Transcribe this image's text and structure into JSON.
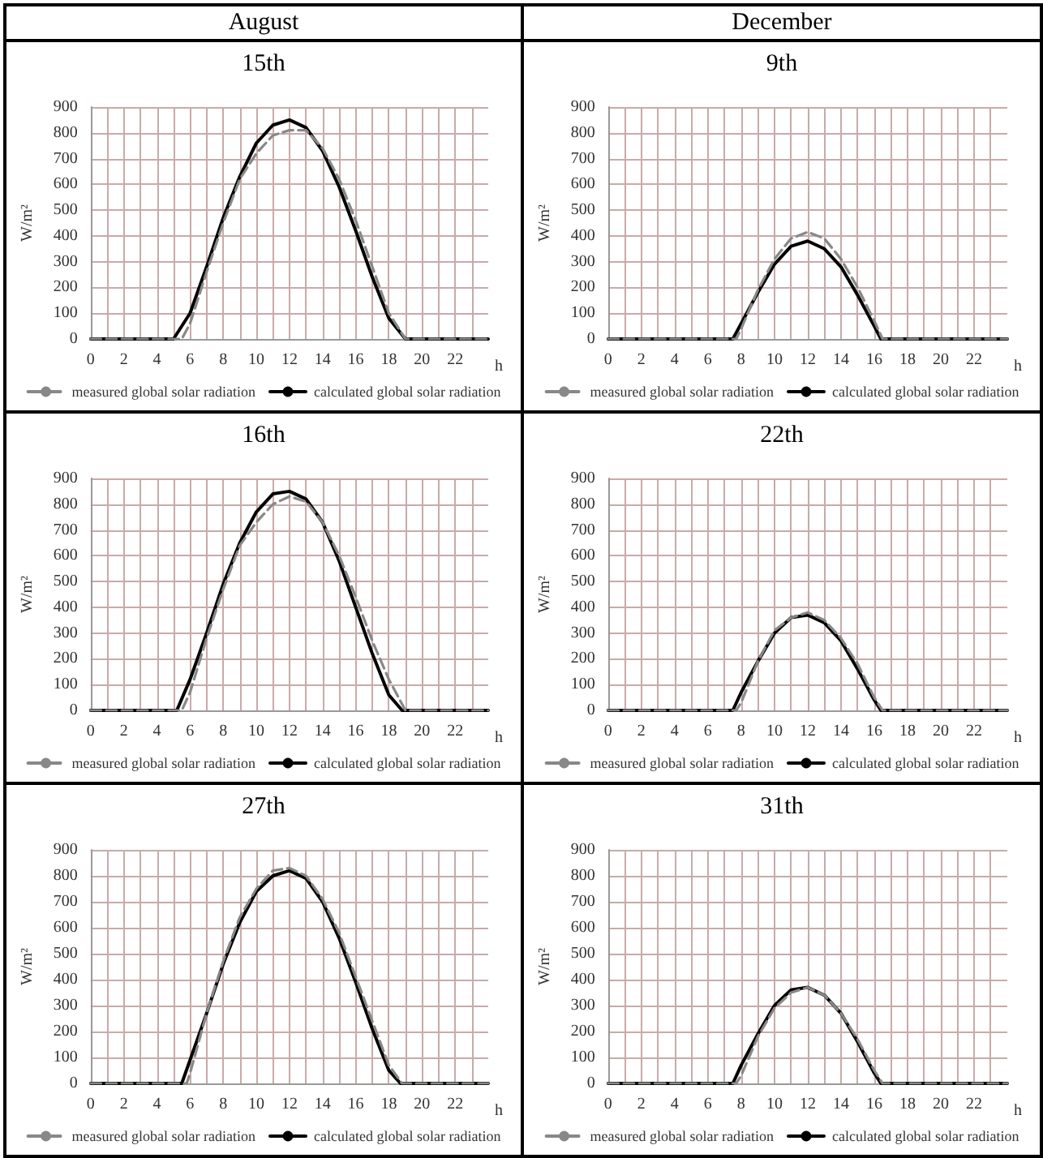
{
  "chart_data": [
    {
      "type": "line",
      "title": "15th",
      "annotations": [
        "August"
      ],
      "xlabel": "h",
      "ylabel": "W/m²",
      "xlim": [
        0,
        24
      ],
      "ylim": [
        0,
        900
      ],
      "xticks": [
        0,
        {
          "value": 1,
          "label": null
        },
        2,
        {
          "value": 3,
          "label": null
        },
        4,
        {
          "value": 5,
          "label": null
        },
        6,
        {
          "value": 7,
          "label": null
        },
        8,
        {
          "value": 9,
          "label": null
        },
        10,
        {
          "value": 11,
          "label": null
        },
        12,
        {
          "value": 13,
          "label": null
        },
        14,
        {
          "value": 15,
          "label": null
        },
        16,
        {
          "value": 17,
          "label": null
        },
        18,
        {
          "value": 19,
          "label": null
        },
        20,
        {
          "value": 21,
          "label": null
        },
        22,
        {
          "value": 23,
          "label": null
        }
      ],
      "yticks": [
        0,
        100,
        200,
        300,
        400,
        500,
        600,
        700,
        800,
        900
      ],
      "grid": true,
      "legend": "bottom",
      "marker": "none",
      "series": [
        {
          "name": "measured global solar radiation",
          "color": "#888888",
          "line_style": "dashed",
          "x": [
            0,
            5.5,
            6,
            7,
            8,
            9,
            10,
            11,
            12,
            13,
            14,
            15,
            16,
            17,
            18,
            19,
            24
          ],
          "values": [
            0,
            0,
            60,
            260,
            450,
            620,
            720,
            790,
            810,
            810,
            740,
            620,
            460,
            280,
            100,
            0,
            0
          ]
        },
        {
          "name": "calculated global solar radiation",
          "color": "#000000",
          "line_style": "solid",
          "x": [
            0,
            5,
            6,
            7,
            8,
            9,
            10,
            11,
            12,
            13,
            14,
            15,
            16,
            17,
            18,
            19,
            24
          ],
          "values": [
            0,
            0,
            100,
            280,
            470,
            630,
            760,
            830,
            850,
            820,
            730,
            590,
            420,
            240,
            80,
            0,
            0
          ]
        }
      ]
    },
    {
      "type": "line",
      "title": "9th",
      "annotations": [
        "December"
      ],
      "xlabel": "h",
      "ylabel": "W/m²",
      "xlim": [
        0,
        24
      ],
      "ylim": [
        0,
        900
      ],
      "xticks": [
        0,
        {
          "value": 1,
          "label": null
        },
        2,
        {
          "value": 3,
          "label": null
        },
        4,
        {
          "value": 5,
          "label": null
        },
        6,
        {
          "value": 7,
          "label": null
        },
        8,
        {
          "value": 9,
          "label": null
        },
        10,
        {
          "value": 11,
          "label": null
        },
        12,
        {
          "value": 13,
          "label": null
        },
        14,
        {
          "value": 15,
          "label": null
        },
        16,
        {
          "value": 17,
          "label": null
        },
        18,
        {
          "value": 19,
          "label": null
        },
        20,
        {
          "value": 21,
          "label": null
        },
        22,
        {
          "value": 23,
          "label": null
        }
      ],
      "yticks": [
        0,
        100,
        200,
        300,
        400,
        500,
        600,
        700,
        800,
        900
      ],
      "grid": true,
      "legend": "bottom",
      "marker": "none",
      "series": [
        {
          "name": "measured global solar radiation",
          "color": "#888888",
          "line_style": "dashed",
          "x": [
            0,
            7.7,
            8,
            9,
            10,
            11,
            12,
            13,
            14,
            15,
            16,
            16.5,
            24
          ],
          "values": [
            0,
            0,
            40,
            190,
            310,
            390,
            415,
            390,
            310,
            200,
            70,
            0,
            0
          ]
        },
        {
          "name": "calculated global solar radiation",
          "color": "#000000",
          "line_style": "solid",
          "x": [
            0,
            7.5,
            8,
            9,
            10,
            11,
            12,
            13,
            14,
            15,
            16,
            16.4,
            24
          ],
          "values": [
            0,
            0,
            60,
            180,
            290,
            360,
            380,
            350,
            280,
            170,
            50,
            0,
            0
          ]
        }
      ]
    },
    {
      "type": "line",
      "title": "16th",
      "xlabel": "h",
      "ylabel": "W/m²",
      "xlim": [
        0,
        24
      ],
      "ylim": [
        0,
        900
      ],
      "xticks": [
        0,
        {
          "value": 1,
          "label": null
        },
        2,
        {
          "value": 3,
          "label": null
        },
        4,
        {
          "value": 5,
          "label": null
        },
        6,
        {
          "value": 7,
          "label": null
        },
        8,
        {
          "value": 9,
          "label": null
        },
        10,
        {
          "value": 11,
          "label": null
        },
        12,
        {
          "value": 13,
          "label": null
        },
        14,
        {
          "value": 15,
          "label": null
        },
        16,
        {
          "value": 17,
          "label": null
        },
        18,
        {
          "value": 19,
          "label": null
        },
        20,
        {
          "value": 21,
          "label": null
        },
        22,
        {
          "value": 23,
          "label": null
        }
      ],
      "yticks": [
        0,
        100,
        200,
        300,
        400,
        500,
        600,
        700,
        800,
        900
      ],
      "grid": true,
      "legend": "bottom",
      "marker": "none",
      "series": [
        {
          "name": "measured global solar radiation",
          "color": "#888888",
          "line_style": "dashed",
          "x": [
            0,
            5.5,
            6,
            7,
            8,
            9,
            10,
            11,
            12,
            13,
            14,
            15,
            16,
            17,
            18,
            19,
            24
          ],
          "values": [
            0,
            0,
            70,
            280,
            470,
            640,
            730,
            800,
            830,
            810,
            730,
            600,
            440,
            270,
            120,
            0,
            0
          ]
        },
        {
          "name": "calculated global solar radiation",
          "color": "#000000",
          "line_style": "solid",
          "x": [
            0,
            5.2,
            6,
            7,
            8,
            9,
            10,
            11,
            12,
            13,
            14,
            15,
            16,
            17,
            18,
            18.8,
            24
          ],
          "values": [
            0,
            0,
            120,
            300,
            490,
            650,
            770,
            840,
            850,
            820,
            730,
            580,
            400,
            220,
            60,
            0,
            0
          ]
        }
      ]
    },
    {
      "type": "line",
      "title": "22th",
      "xlabel": "h",
      "ylabel": "W/m²",
      "xlim": [
        0,
        24
      ],
      "ylim": [
        0,
        900
      ],
      "xticks": [
        0,
        {
          "value": 1,
          "label": null
        },
        2,
        {
          "value": 3,
          "label": null
        },
        4,
        {
          "value": 5,
          "label": null
        },
        6,
        {
          "value": 7,
          "label": null
        },
        8,
        {
          "value": 9,
          "label": null
        },
        10,
        {
          "value": 11,
          "label": null
        },
        12,
        {
          "value": 13,
          "label": null
        },
        14,
        {
          "value": 15,
          "label": null
        },
        16,
        {
          "value": 17,
          "label": null
        },
        18,
        {
          "value": 19,
          "label": null
        },
        20,
        {
          "value": 21,
          "label": null
        },
        22,
        {
          "value": 23,
          "label": null
        }
      ],
      "yticks": [
        0,
        100,
        200,
        300,
        400,
        500,
        600,
        700,
        800,
        900
      ],
      "grid": true,
      "legend": "bottom",
      "marker": "none",
      "series": [
        {
          "name": "measured global solar radiation",
          "color": "#888888",
          "line_style": "dashed",
          "x": [
            0,
            7.7,
            8,
            9,
            10,
            11,
            12,
            13,
            14,
            15,
            16,
            16.5,
            24
          ],
          "values": [
            0,
            0,
            30,
            190,
            310,
            360,
            380,
            350,
            280,
            180,
            50,
            0,
            0
          ]
        },
        {
          "name": "calculated global solar radiation",
          "color": "#000000",
          "line_style": "solid",
          "x": [
            0,
            7.5,
            8,
            9,
            10,
            11,
            12,
            13,
            14,
            15,
            16,
            16.4,
            24
          ],
          "values": [
            0,
            0,
            70,
            190,
            300,
            360,
            370,
            340,
            270,
            160,
            40,
            0,
            0
          ]
        }
      ]
    },
    {
      "type": "line",
      "title": "27th",
      "xlabel": "h",
      "ylabel": "W/m²",
      "xlim": [
        0,
        24
      ],
      "ylim": [
        0,
        900
      ],
      "xticks": [
        0,
        {
          "value": 1,
          "label": null
        },
        2,
        {
          "value": 3,
          "label": null
        },
        4,
        {
          "value": 5,
          "label": null
        },
        6,
        {
          "value": 7,
          "label": null
        },
        8,
        {
          "value": 9,
          "label": null
        },
        10,
        {
          "value": 11,
          "label": null
        },
        12,
        {
          "value": 13,
          "label": null
        },
        14,
        {
          "value": 15,
          "label": null
        },
        16,
        {
          "value": 17,
          "label": null
        },
        18,
        {
          "value": 19,
          "label": null
        },
        20,
        {
          "value": 21,
          "label": null
        },
        22,
        {
          "value": 23,
          "label": null
        }
      ],
      "yticks": [
        0,
        100,
        200,
        300,
        400,
        500,
        600,
        700,
        800,
        900
      ],
      "grid": true,
      "legend": "bottom",
      "marker": "none",
      "series": [
        {
          "name": "measured global solar radiation",
          "color": "#888888",
          "line_style": "dashed",
          "x": [
            0,
            5.8,
            6,
            7,
            8,
            9,
            10,
            11,
            12,
            13,
            14,
            15,
            16,
            17,
            18,
            18.8,
            24
          ],
          "values": [
            0,
            0,
            40,
            270,
            470,
            640,
            750,
            820,
            830,
            800,
            710,
            580,
            410,
            240,
            70,
            0,
            0
          ]
        },
        {
          "name": "calculated global solar radiation",
          "color": "#000000",
          "line_style": "solid",
          "x": [
            0,
            5.5,
            6,
            7,
            8,
            9,
            10,
            11,
            12,
            13,
            14,
            15,
            16,
            17,
            18,
            18.7,
            24
          ],
          "values": [
            0,
            0,
            90,
            270,
            460,
            620,
            740,
            800,
            820,
            790,
            700,
            560,
            390,
            210,
            50,
            0,
            0
          ]
        }
      ]
    },
    {
      "type": "line",
      "title": "31th",
      "xlabel": "h",
      "ylabel": "W/m²",
      "xlim": [
        0,
        24
      ],
      "ylim": [
        0,
        900
      ],
      "xticks": [
        0,
        {
          "value": 1,
          "label": null
        },
        2,
        {
          "value": 3,
          "label": null
        },
        4,
        {
          "value": 5,
          "label": null
        },
        6,
        {
          "value": 7,
          "label": null
        },
        8,
        {
          "value": 9,
          "label": null
        },
        10,
        {
          "value": 11,
          "label": null
        },
        12,
        {
          "value": 13,
          "label": null
        },
        14,
        {
          "value": 15,
          "label": null
        },
        16,
        {
          "value": 17,
          "label": null
        },
        18,
        {
          "value": 19,
          "label": null
        },
        20,
        {
          "value": 21,
          "label": null
        },
        22,
        {
          "value": 23,
          "label": null
        }
      ],
      "yticks": [
        0,
        100,
        200,
        300,
        400,
        500,
        600,
        700,
        800,
        900
      ],
      "grid": true,
      "legend": "bottom",
      "marker": "none",
      "series": [
        {
          "name": "measured global solar radiation",
          "color": "#888888",
          "line_style": "dashed",
          "x": [
            0,
            7.7,
            8,
            9,
            10,
            11,
            12,
            13,
            14,
            15,
            16,
            16.5,
            24
          ],
          "values": [
            0,
            0,
            30,
            180,
            290,
            350,
            370,
            340,
            270,
            170,
            50,
            0,
            0
          ]
        },
        {
          "name": "calculated global solar radiation",
          "color": "#000000",
          "line_style": "solid",
          "x": [
            0,
            7.5,
            8,
            9,
            10,
            11,
            12,
            13,
            14,
            15,
            16,
            16.4,
            24
          ],
          "values": [
            0,
            0,
            70,
            190,
            300,
            360,
            370,
            340,
            270,
            160,
            40,
            0,
            0
          ]
        }
      ]
    }
  ]
}
